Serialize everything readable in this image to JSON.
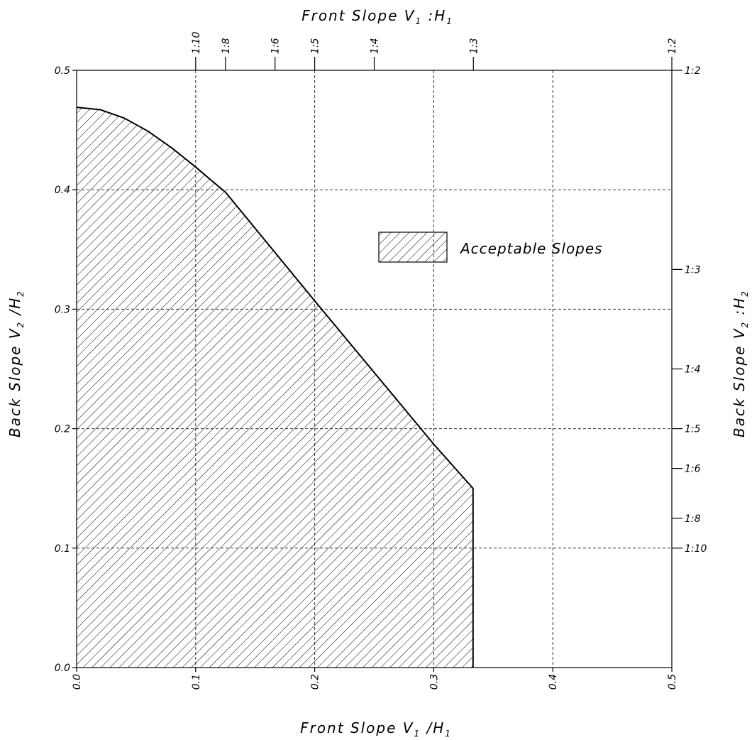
{
  "chart_data": {
    "type": "area",
    "x_axis": {
      "label_main": "Front Slope V",
      "label_sub1": "1",
      "label_sep": " /H",
      "label_sub2": "1",
      "range": [
        0.0,
        0.5
      ],
      "ticks": [
        {
          "v": 0.0,
          "label": "0.0"
        },
        {
          "v": 0.1,
          "label": "0.1"
        },
        {
          "v": 0.2,
          "label": "0.2"
        },
        {
          "v": 0.3,
          "label": "0.3"
        },
        {
          "v": 0.4,
          "label": "0.4"
        },
        {
          "v": 0.5,
          "label": "0.5"
        }
      ]
    },
    "y_axis": {
      "label_main": "Back Slope V",
      "label_sub1": "2",
      "label_sep": " /H",
      "label_sub2": "2",
      "range": [
        0.0,
        0.5
      ],
      "ticks": [
        {
          "v": 0.0,
          "label": "0.0"
        },
        {
          "v": 0.1,
          "label": "0.1"
        },
        {
          "v": 0.2,
          "label": "0.2"
        },
        {
          "v": 0.3,
          "label": "0.3"
        },
        {
          "v": 0.4,
          "label": "0.4"
        },
        {
          "v": 0.5,
          "label": "0.5"
        }
      ]
    },
    "top_axis": {
      "label_main": "Front Slope V",
      "label_sub1": "1",
      "label_sep": " :H",
      "label_sub2": "1",
      "ticks": [
        {
          "v": 0.1,
          "label": "1:10"
        },
        {
          "v": 0.125,
          "label": "1:8"
        },
        {
          "v": 0.1667,
          "label": "1:6"
        },
        {
          "v": 0.2,
          "label": "1:5"
        },
        {
          "v": 0.25,
          "label": "1:4"
        },
        {
          "v": 0.3333,
          "label": "1:3"
        },
        {
          "v": 0.5,
          "label": "1:2"
        }
      ]
    },
    "right_axis": {
      "label_main": "Back Slope V",
      "label_sub1": "2",
      "label_sep": " :H",
      "label_sub2": "2",
      "ticks": [
        {
          "v": 0.5,
          "label": "1:2"
        },
        {
          "v": 0.3333,
          "label": "1:3"
        },
        {
          "v": 0.25,
          "label": "1:4"
        },
        {
          "v": 0.2,
          "label": "1:5"
        },
        {
          "v": 0.1667,
          "label": "1:6"
        },
        {
          "v": 0.125,
          "label": "1:8"
        },
        {
          "v": 0.1,
          "label": "1:10"
        }
      ]
    },
    "grid": {
      "x": [
        0.1,
        0.2,
        0.3,
        0.4
      ],
      "y": [
        0.1,
        0.2,
        0.3,
        0.4
      ]
    },
    "region": {
      "name": "Acceptable Slopes",
      "fill": "hatched",
      "boundary": [
        [
          0.0,
          0.0
        ],
        [
          0.0,
          0.469
        ],
        [
          0.02,
          0.467
        ],
        [
          0.04,
          0.46
        ],
        [
          0.06,
          0.449
        ],
        [
          0.08,
          0.435
        ],
        [
          0.1,
          0.419
        ],
        [
          0.113,
          0.408
        ],
        [
          0.125,
          0.398
        ],
        [
          0.2,
          0.307
        ],
        [
          0.3,
          0.187
        ],
        [
          0.333,
          0.15
        ],
        [
          0.333,
          0.0
        ]
      ]
    },
    "legend": {
      "label": "Acceptable Slopes",
      "position": "upper-right"
    }
  }
}
